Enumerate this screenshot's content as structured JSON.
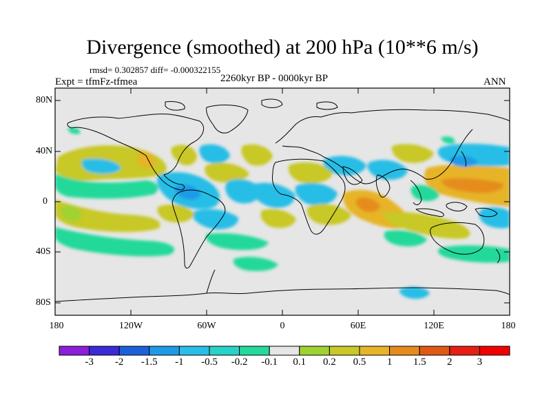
{
  "figure": {
    "title": "Divergence (smoothed) at 200 hPa (10**6 m/s)",
    "stats": "rmsd= 0.302857 diff= -0.000322155",
    "expt": "Expt = tfmFz-tfmea",
    "period": "2260kyr BP - 0000kyr BP",
    "season": "ANN"
  },
  "axes": {
    "lat_labels": [
      "80N",
      "40N",
      "0",
      "40S",
      "80S"
    ],
    "lon_labels": [
      "180",
      "120W",
      "60W",
      "0",
      "60E",
      "120E",
      "180"
    ]
  },
  "colorbar": {
    "labels": [
      "-3",
      "-2",
      "-1.5",
      "-1",
      "-0.5",
      "-0.2",
      "-0.1",
      "0.1",
      "0.2",
      "0.5",
      "1",
      "1.5",
      "2",
      "3"
    ],
    "colors": [
      "#8c1edc",
      "#3a2bd6",
      "#1e5fdc",
      "#1e9be6",
      "#28bee6",
      "#28d2c8",
      "#24d99a",
      "#e6e6e6",
      "#a0d232",
      "#c8c828",
      "#e6b428",
      "#e68c1e",
      "#e05a14",
      "#e61e14",
      "#f00000"
    ]
  },
  "map_colors": {
    "neutral": "#e6e6e6",
    "pos_weak": "#a0d232",
    "pos_mid": "#c8c828",
    "pos_strong": "#e6b428",
    "pos_max": "#e68c1e",
    "neg_weak": "#24d99a",
    "neg_mid": "#28bee6",
    "neg_strong": "#1e9be6"
  }
}
